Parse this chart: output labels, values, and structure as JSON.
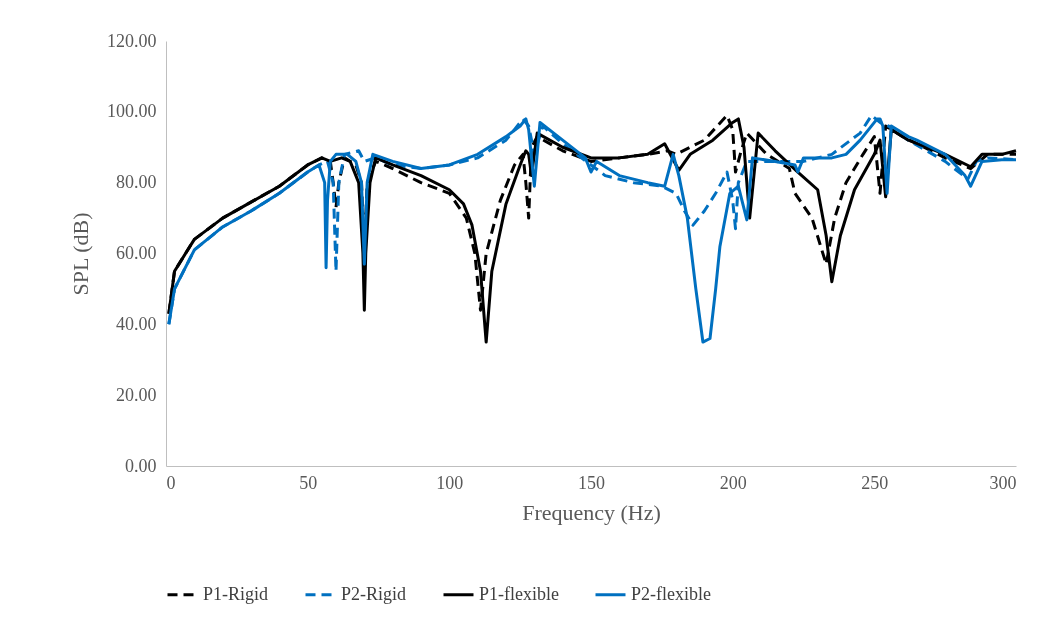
{
  "chart_data": {
    "type": "line",
    "xlabel": "Frequency (Hz)",
    "ylabel": "SPL (dB)",
    "xlim": [
      0,
      300
    ],
    "xticks": [
      0,
      50,
      100,
      150,
      200,
      250,
      300
    ],
    "ylim": [
      0,
      120
    ],
    "yticks": [
      {
        "value": 0,
        "label": "0.00"
      },
      {
        "value": 20,
        "label": "20.00"
      },
      {
        "value": 40,
        "label": "40.00"
      },
      {
        "value": 60,
        "label": "60.00"
      },
      {
        "value": 80,
        "label": "80.00"
      },
      {
        "value": 100,
        "label": "100.00"
      },
      {
        "value": 120,
        "label": "120.00"
      }
    ],
    "grid": false,
    "legend": "bottom",
    "marker": "none",
    "series": [
      {
        "name": "P1-Rigid",
        "color": "#000000",
        "line_style": "dashed",
        "x": [
          1,
          3,
          10,
          20,
          30,
          40,
          50,
          55,
          58,
          59,
          60,
          61,
          63,
          67,
          69,
          70,
          71,
          74,
          80,
          90,
          100,
          106,
          109,
          111,
          113,
          118,
          123,
          126,
          127,
          128,
          129,
          131,
          140,
          150,
          160,
          170,
          177,
          180,
          190,
          198,
          200,
          201,
          203,
          205,
          212,
          220,
          222,
          228,
          233,
          236,
          240,
          246,
          250,
          252,
          254,
          260,
          275,
          284,
          290,
          300
        ],
        "values": [
          43,
          55,
          64,
          70,
          74.5,
          79,
          85,
          87,
          86,
          80,
          73,
          80,
          87,
          85,
          80,
          60,
          80,
          86,
          84,
          80,
          77,
          70,
          60,
          44,
          60,
          75,
          85,
          88,
          80,
          70,
          90,
          93,
          89,
          86,
          87,
          88,
          89,
          88,
          92,
          99,
          95,
          83,
          89,
          94,
          88,
          84,
          77,
          70,
          57,
          70,
          80,
          88,
          93,
          77,
          96,
          93,
          87,
          84,
          88,
          88
        ]
      },
      {
        "name": "P2-Rigid",
        "color": "#0070c0",
        "line_style": "dashed",
        "x": [
          1,
          3,
          10,
          20,
          30,
          40,
          50,
          54,
          57,
          59,
          60,
          61,
          63,
          68,
          70,
          74,
          80,
          90,
          100,
          110,
          120,
          126,
          128,
          130,
          133,
          140,
          150,
          155,
          165,
          175,
          180,
          183,
          186,
          190,
          194,
          198,
          200,
          201,
          202,
          205,
          215,
          225,
          235,
          245,
          249,
          252,
          255,
          262,
          275,
          283,
          286,
          290,
          300
        ],
        "values": [
          40,
          50,
          61,
          67.5,
          72,
          77,
          83,
          85,
          86,
          80,
          55,
          80,
          88,
          89,
          86,
          87,
          85,
          84,
          85,
          87,
          92,
          98,
          96,
          88,
          96,
          91,
          85,
          82,
          80,
          79,
          77,
          72,
          68,
          72,
          77,
          83,
          75,
          67,
          80,
          86,
          86,
          86,
          88,
          94,
          99,
          97,
          96,
          92,
          86,
          81,
          86,
          87,
          86.5
        ]
      },
      {
        "name": "P1-flexible",
        "color": "#000000",
        "line_style": "solid",
        "x": [
          1,
          3,
          10,
          20,
          30,
          40,
          50,
          55,
          58,
          62,
          65,
          68,
          69.5,
          70,
          70.5,
          72,
          74,
          80,
          90,
          100,
          105,
          108,
          111,
          113,
          115,
          120,
          125,
          127,
          128,
          129,
          131,
          140,
          150,
          160,
          170,
          176,
          181,
          185,
          193,
          200,
          202,
          204,
          206,
          209,
          215,
          223,
          230,
          233,
          235,
          238,
          243,
          250,
          252,
          254,
          256,
          262,
          275,
          284,
          288,
          295,
          300
        ],
        "values": [
          43,
          55,
          64,
          70,
          74.5,
          79,
          85,
          87,
          86,
          87,
          86,
          80,
          60,
          44,
          60,
          80,
          87,
          85,
          82,
          78,
          74,
          68,
          55,
          35,
          55,
          74,
          85,
          89,
          88,
          82,
          94,
          90,
          87,
          87,
          88,
          91,
          83.5,
          88,
          92,
          97,
          98,
          90,
          70,
          94,
          89,
          83,
          78,
          65,
          52,
          65,
          78,
          88,
          92,
          76,
          95,
          92,
          88,
          84.5,
          88,
          88,
          89
        ]
      },
      {
        "name": "P2-flexible",
        "color": "#0070c0",
        "line_style": "solid",
        "x": [
          1,
          3,
          10,
          20,
          30,
          40,
          50,
          54,
          56,
          56.5,
          57,
          58,
          60,
          64,
          67,
          69,
          70,
          71,
          73,
          80,
          90,
          100,
          110,
          120,
          125,
          127,
          128,
          130,
          132,
          140,
          148,
          150,
          152,
          160,
          170,
          176,
          178,
          179,
          181,
          184,
          187,
          189.5,
          192,
          194,
          195.5,
          199,
          202,
          205,
          207,
          215,
          222,
          223,
          225,
          235,
          240,
          245,
          251,
          252,
          253,
          254.5,
          256,
          262,
          265,
          275,
          282,
          284,
          288,
          295,
          300
        ],
        "values": [
          40,
          50,
          61,
          67.5,
          72,
          77,
          83,
          85,
          80,
          56,
          75,
          86,
          88,
          88,
          86,
          80,
          57,
          80,
          88,
          86,
          84,
          85,
          88,
          93,
          96,
          98,
          95,
          79,
          97,
          92,
          87,
          83,
          86,
          82,
          80,
          79,
          85,
          88,
          82,
          70,
          50,
          35,
          36,
          50,
          62,
          77,
          79,
          69.5,
          87,
          86,
          85,
          83,
          87,
          87,
          88,
          92,
          98,
          98,
          96,
          77,
          96,
          93,
          92,
          88,
          82,
          79,
          86,
          86.5,
          86.5
        ]
      }
    ]
  }
}
